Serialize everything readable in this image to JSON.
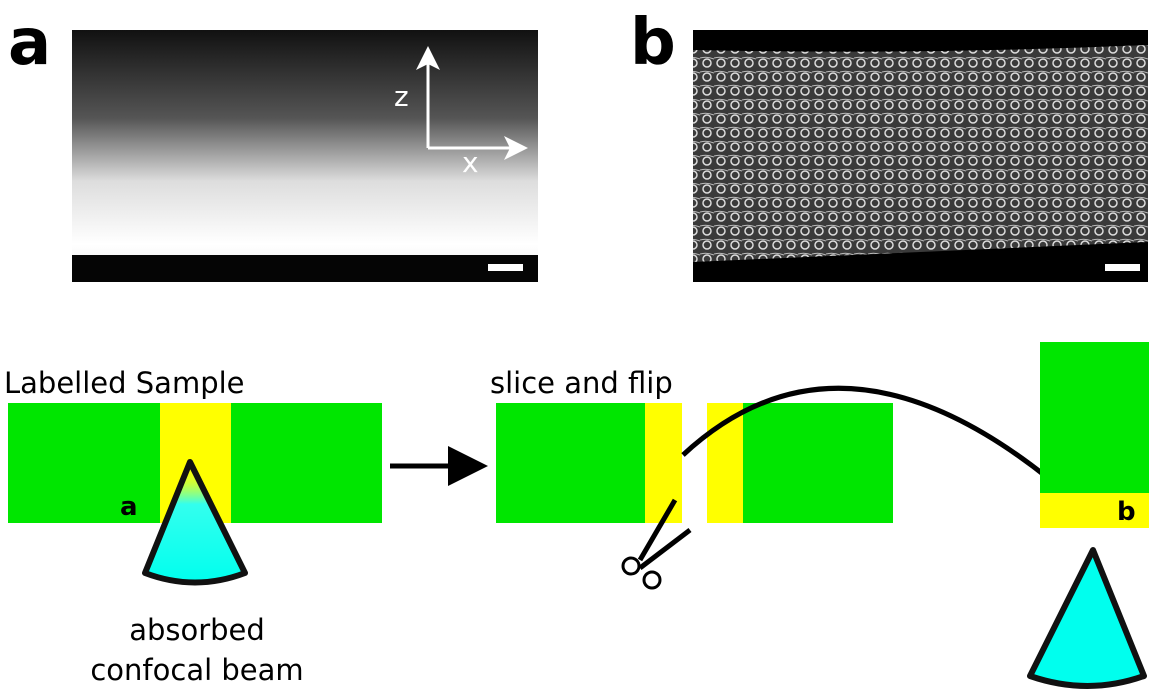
{
  "panels": {
    "a": {
      "label": "a",
      "axis_z": "z",
      "axis_x": "x"
    },
    "b": {
      "label": "b"
    }
  },
  "schematic": {
    "step1": {
      "title": "Labelled Sample",
      "marker": "a",
      "beam_label": [
        "absorbed",
        "confocal beam"
      ]
    },
    "step2": {
      "title": "slice and flip"
    },
    "step3": {
      "marker": "b"
    }
  }
}
